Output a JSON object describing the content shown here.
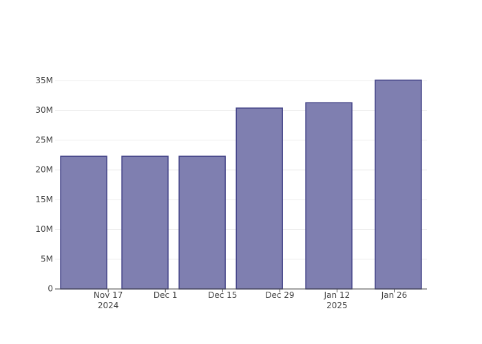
{
  "chart_data": {
    "type": "bar",
    "x": [
      "2024-11-11",
      "2024-11-26",
      "2024-12-10",
      "2024-12-24",
      "2025-01-10",
      "2025-01-27"
    ],
    "values": [
      22300000,
      22300000,
      22300000,
      30400000,
      31300000,
      35100000
    ],
    "color": "#7f7fb0",
    "line_color": "#444488",
    "xlim": [
      "2024-11-04",
      "2025-02-03"
    ],
    "xticks": [
      {
        "value": "2024-11-17",
        "label": "Nov 17\n2024"
      },
      {
        "value": "2024-12-01",
        "label": "Dec 1"
      },
      {
        "value": "2024-12-15",
        "label": "Dec 15"
      },
      {
        "value": "2024-12-29",
        "label": "Dec 29"
      },
      {
        "value": "2025-01-12",
        "label": "Jan 12\n2025"
      },
      {
        "value": "2025-01-26",
        "label": "Jan 26"
      }
    ],
    "ylim": [
      0,
      37000000
    ],
    "yticks": [
      0,
      {
        "value": 5000000,
        "label": "5M"
      },
      {
        "value": 10000000,
        "label": "10M"
      },
      {
        "value": 15000000,
        "label": "15M"
      },
      {
        "value": 20000000,
        "label": "20M"
      },
      {
        "value": 25000000,
        "label": "25M"
      },
      {
        "value": 30000000,
        "label": "30M"
      },
      {
        "value": 35000000,
        "label": "35M"
      }
    ],
    "grid": true
  }
}
